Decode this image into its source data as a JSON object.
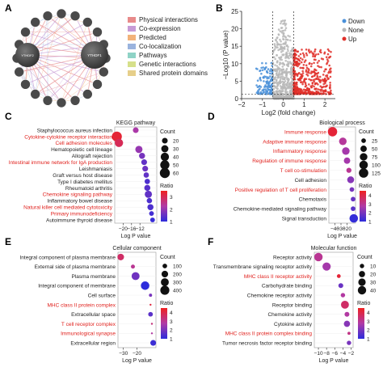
{
  "panels": {
    "A": {
      "letter": "A",
      "hub_label": "YTHDF1",
      "left_node_label": "YTHDF2",
      "legend": [
        {
          "label": "Physical interactions",
          "color": "#e88a8a"
        },
        {
          "label": "Co-expression",
          "color": "#c79bd6"
        },
        {
          "label": "Predicted",
          "color": "#f2b27a"
        },
        {
          "label": "Co-localization",
          "color": "#9ab3de"
        },
        {
          "label": "Pathways",
          "color": "#8fd3c6"
        },
        {
          "label": "Genetic interactions",
          "color": "#d6e08a"
        },
        {
          "label": "Shared protein domains",
          "color": "#e6cf8a"
        }
      ]
    },
    "B": {
      "letter": "B"
    },
    "C": {
      "letter": "C"
    },
    "D": {
      "letter": "D"
    },
    "E": {
      "letter": "E"
    },
    "F": {
      "letter": "F"
    }
  },
  "colorbar_labels": {
    "C": [
      "3",
      "2",
      "1"
    ],
    "D": [
      "4",
      "3",
      "2",
      "1"
    ],
    "E": [
      "4",
      "3",
      "2",
      "1"
    ],
    "F": [
      "4",
      "3",
      "2",
      "1"
    ]
  },
  "chart_data": [
    {
      "id": "B",
      "type": "scatter",
      "title": "",
      "xlabel": "Log2 (fold change)",
      "ylabel": "−Log10 (P value)",
      "xlim": [
        -2,
        2.5
      ],
      "ylim": [
        0,
        25
      ],
      "xticks": [
        "−2",
        "−1",
        "0",
        "1",
        "2"
      ],
      "yticks": [
        "0",
        "5",
        "10",
        "15",
        "20",
        "25"
      ],
      "thresholds": {
        "x": [
          -0.5,
          0.5
        ],
        "y": 1.3
      },
      "legend": [
        "Down",
        "None",
        "Up"
      ],
      "series": [
        {
          "name": "Down",
          "color": "#4a90d9",
          "x_range": [
            -1.3,
            -0.5
          ],
          "y_range": [
            1.3,
            11
          ]
        },
        {
          "name": "None",
          "color": "#b8b8b8",
          "x_range": [
            -0.5,
            0.5
          ],
          "y_range": [
            0,
            25
          ]
        },
        {
          "name": "Up",
          "color": "#e0302a",
          "x_range": [
            0.5,
            2.3
          ],
          "y_range": [
            1.3,
            15
          ]
        }
      ]
    },
    {
      "id": "C",
      "type": "scatter",
      "title": "KEGG pathway",
      "xlabel": "Log P value",
      "xlim": [
        -24,
        -4
      ],
      "xticks": [
        -20,
        -16,
        -12
      ],
      "size_legend_title": "Count",
      "size_legend": [
        20,
        30,
        40,
        50,
        60
      ],
      "color_legend_title": "Ratio",
      "color_range": [
        1,
        3.5
      ],
      "categories": [
        "Staphylococcus aureus infection",
        "Cytokine-cytokine receptor interaction",
        "Cell adhesion molecules",
        "Hematopoietic cell lineage",
        "Allograft rejection",
        "Intestinal immune network for IgA production",
        "Leishmaniasis",
        "Graft versus host disease",
        "Type I diabetes mellitus",
        "Rheumatoid arthritis",
        "Chemokine signaling pathway",
        "Inflammatory bowel disease",
        "Natural killer cell mediated cytotoxicity",
        "Primary immunodeficiency",
        "Autoimmune thyroid disease"
      ],
      "highlight": [
        false,
        true,
        true,
        false,
        false,
        true,
        false,
        false,
        false,
        false,
        true,
        false,
        true,
        true,
        false
      ],
      "x": [
        -14,
        -23,
        -22,
        -12.5,
        -11,
        -10,
        -9.5,
        -9,
        -8.5,
        -8.5,
        -8,
        -7.5,
        -7,
        -6.5,
        -6
      ],
      "count": [
        20,
        60,
        40,
        30,
        22,
        20,
        20,
        18,
        18,
        22,
        30,
        18,
        22,
        15,
        15
      ],
      "ratio": [
        2.2,
        3.3,
        3.0,
        2.0,
        1.7,
        1.5,
        1.6,
        1.5,
        1.3,
        1.4,
        1.5,
        1.3,
        1.3,
        1.2,
        1.1
      ]
    },
    {
      "id": "D",
      "type": "scatter",
      "title": "Biological process",
      "xlabel": "Log P value",
      "xlim": [
        -50,
        -6
      ],
      "xticks": [
        -40,
        -30,
        -20
      ],
      "size_legend_title": "Count",
      "size_legend": [
        25,
        50,
        75,
        100,
        125
      ],
      "color_legend_title": "Ratio",
      "color_range": [
        1,
        4.5
      ],
      "categories": [
        "Immune response",
        "Adaptive immune response",
        "Inflammatory response",
        "Regulation of immune response",
        "T cell co-stimulation",
        "Cell adhesion",
        "Positive regulation of T cell proliferation",
        "Chemotaxis",
        "Chemokine-mediated signaling pathway",
        "Signal transduction"
      ],
      "highlight": [
        true,
        true,
        true,
        true,
        true,
        false,
        true,
        false,
        false,
        false
      ],
      "x": [
        -44,
        -27,
        -22,
        -20,
        -17,
        -14,
        -12,
        -10,
        -10,
        -9
      ],
      "count": [
        125,
        75,
        75,
        50,
        30,
        60,
        25,
        25,
        25,
        100
      ],
      "ratio": [
        4.2,
        2.9,
        2.6,
        2.6,
        3.0,
        2.2,
        2.0,
        1.8,
        1.6,
        1.1
      ]
    },
    {
      "id": "E",
      "type": "scatter",
      "title": "Cellular component",
      "xlabel": "Log P value",
      "xlim": [
        -34,
        -6
      ],
      "xticks": [
        -30,
        -20
      ],
      "size_legend_title": "Count",
      "size_legend": [
        100,
        200,
        300,
        400
      ],
      "color_legend_title": "Ratio",
      "color_range": [
        1,
        4.5
      ],
      "categories": [
        "Integral component of plasma membrane",
        "External side of plasma membrane",
        "Plasma membrane",
        "Integral component of membrane",
        "Cell surface",
        "MHC class II protein complex",
        "Extracellular space",
        "T cell receptor complex",
        "Immunological synapse",
        "Extracellular region"
      ],
      "highlight": [
        false,
        false,
        false,
        false,
        false,
        true,
        false,
        true,
        true,
        false
      ],
      "x": [
        -32,
        -23,
        -21,
        -14,
        -10,
        -10,
        -10,
        -9,
        -9,
        -8
      ],
      "count": [
        200,
        80,
        300,
        350,
        60,
        25,
        100,
        30,
        25,
        150
      ],
      "ratio": [
        3.6,
        3.0,
        1.9,
        1.0,
        2.0,
        4.1,
        1.6,
        3.3,
        2.8,
        1.2
      ]
    },
    {
      "id": "F",
      "type": "scatter",
      "title": "Molecular function",
      "xlabel": "Log P value",
      "xlim": [
        -11,
        -1.5
      ],
      "xticks": [
        -10,
        -8,
        -6,
        -4,
        -2
      ],
      "size_legend_title": "Count",
      "size_legend": [
        10,
        20,
        30,
        40
      ],
      "color_legend_title": "Ratio",
      "color_range": [
        1,
        4.5
      ],
      "categories": [
        "Receptor activity",
        "Transmembrane signaling receptor activity",
        "MHC class II receptor activity",
        "Carbohydrate binding",
        "Chemokine receptor activity",
        "Receptor binding",
        "Chemokine activity",
        "Cytokine activity",
        "MHC class II protein complex binding",
        "Tumor necrosis factor receptor binding"
      ],
      "highlight": [
        false,
        false,
        true,
        false,
        false,
        false,
        false,
        false,
        true,
        false
      ],
      "x": [
        -10,
        -8,
        -5,
        -4.5,
        -4,
        -3.5,
        -3,
        -3,
        -2.5,
        -2.5
      ],
      "count": [
        40,
        38,
        8,
        12,
        10,
        35,
        12,
        20,
        6,
        10
      ],
      "ratio": [
        3.0,
        2.6,
        4.2,
        1.8,
        2.8,
        3.6,
        2.8,
        2.2,
        3.2,
        2.0
      ]
    }
  ]
}
